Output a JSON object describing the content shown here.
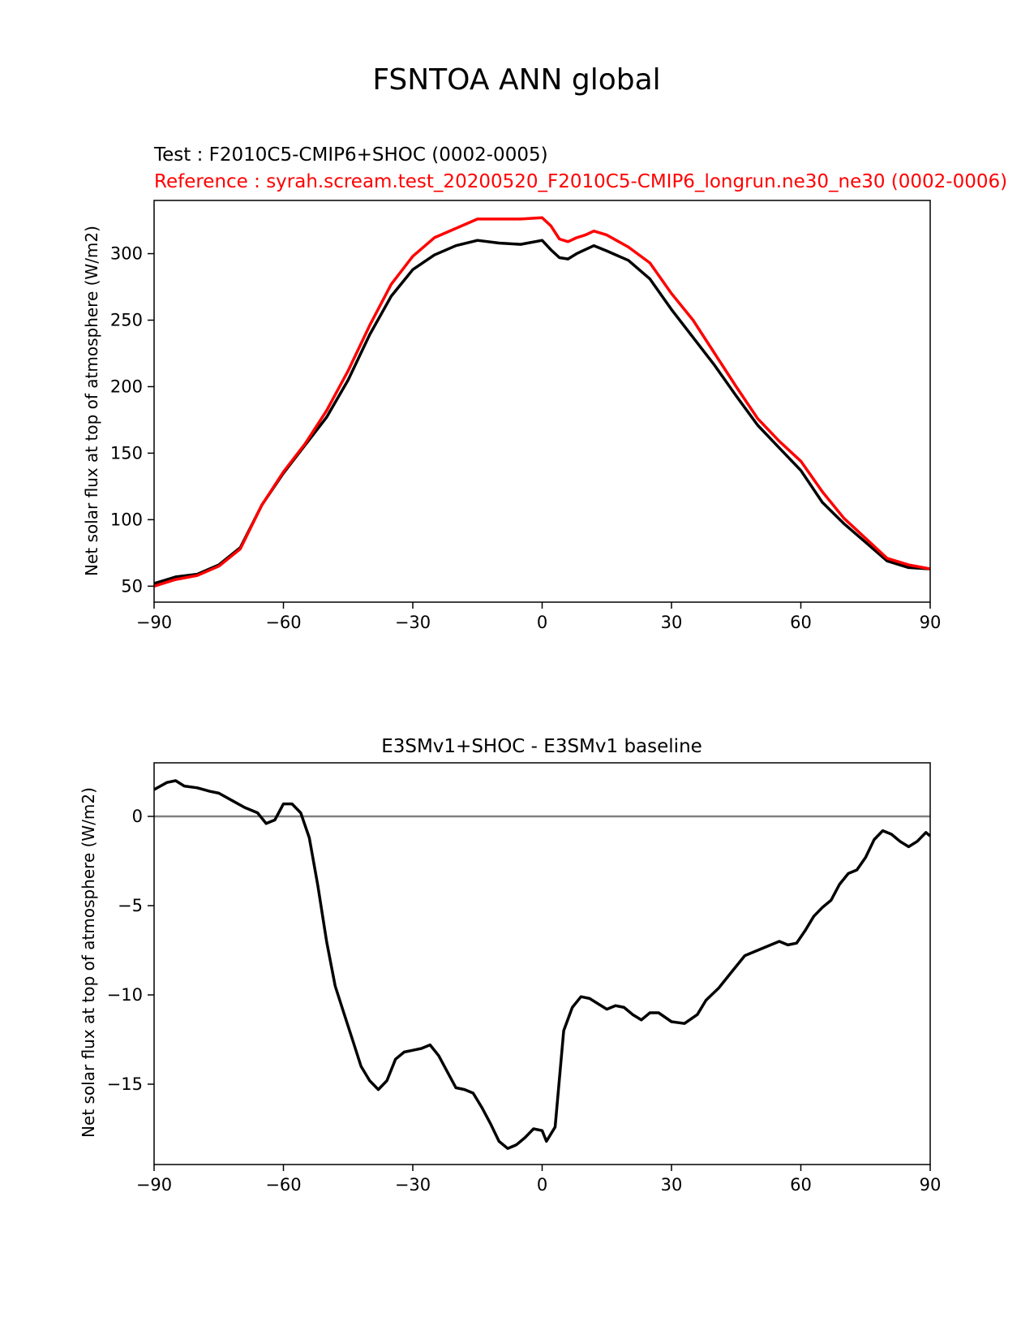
{
  "figure_title": "FSNTOA ANN global",
  "chart_data": [
    {
      "type": "line",
      "test_label": "Test : F2010C5-CMIP6+SHOC (0002-0005)",
      "reference_label": "Reference : syrah.scream.test_20200520_F2010C5-CMIP6_longrun.ne30_ne30 (0002-0006)",
      "ylabel": "Net solar flux at top of atmosphere (W/m2)",
      "xlabel": "",
      "xlim": [
        -90,
        90
      ],
      "ylim": [
        38,
        340
      ],
      "xticks": [
        -90,
        -60,
        -30,
        0,
        30,
        60,
        90
      ],
      "xtick_labels": [
        "−90",
        "−60",
        "−30",
        "0",
        "30",
        "60",
        "90"
      ],
      "yticks": [
        50,
        100,
        150,
        200,
        250,
        300
      ],
      "ytick_labels": [
        "50",
        "100",
        "150",
        "200",
        "250",
        "300"
      ],
      "x": [
        -90,
        -85,
        -80,
        -75,
        -70,
        -65,
        -60,
        -55,
        -50,
        -45,
        -40,
        -35,
        -30,
        -25,
        -20,
        -15,
        -10,
        -5,
        0,
        2,
        4,
        6,
        8,
        10,
        12,
        15,
        20,
        25,
        30,
        35,
        40,
        45,
        50,
        55,
        60,
        65,
        70,
        75,
        80,
        85,
        90
      ],
      "series": [
        {
          "name": "Test",
          "color": "#000000",
          "values": [
            52,
            57,
            59,
            66,
            79,
            111,
            135,
            156,
            177,
            205,
            239,
            268,
            288,
            299,
            306,
            310,
            308,
            307,
            310,
            303,
            297,
            296,
            300,
            303,
            306,
            302,
            295,
            281,
            258,
            237,
            216,
            193,
            171,
            154,
            137,
            113,
            97,
            83,
            69,
            64,
            63
          ]
        },
        {
          "name": "Reference",
          "color": "#ff0000",
          "values": [
            50,
            55,
            58,
            65,
            78,
            111,
            136,
            157,
            182,
            212,
            246,
            277,
            298,
            312,
            319,
            326,
            326,
            326,
            327,
            321,
            311,
            309,
            312,
            314,
            317,
            314,
            305,
            293,
            270,
            250,
            225,
            200,
            176,
            159,
            144,
            121,
            101,
            86,
            71,
            66,
            63
          ]
        }
      ]
    },
    {
      "type": "line",
      "title": "E3SMv1+SHOC - E3SMv1 baseline",
      "ylabel": "Net solar flux at top of atmosphere (W/m2)",
      "xlabel": "",
      "xlim": [
        -90,
        90
      ],
      "ylim": [
        -19.5,
        3
      ],
      "xticks": [
        -90,
        -60,
        -30,
        0,
        30,
        60,
        90
      ],
      "xtick_labels": [
        "−90",
        "−60",
        "−30",
        "0",
        "30",
        "60",
        "90"
      ],
      "yticks": [
        0,
        -5,
        -10,
        -15
      ],
      "ytick_labels": [
        "0",
        "−5",
        "−10",
        "−15"
      ],
      "zero_line": true,
      "x": [
        -90,
        -87,
        -85,
        -83,
        -80,
        -77,
        -75,
        -72,
        -69,
        -66,
        -64,
        -62,
        -60,
        -58,
        -56,
        -54,
        -52,
        -50,
        -48,
        -46,
        -44,
        -42,
        -40,
        -38,
        -36,
        -34,
        -32,
        -30,
        -28,
        -26,
        -24,
        -22,
        -20,
        -18,
        -16,
        -14,
        -12,
        -10,
        -8,
        -6,
        -4,
        -2,
        0,
        1,
        3,
        5,
        7,
        9,
        11,
        13,
        15,
        17,
        19,
        21,
        23,
        25,
        27,
        30,
        33,
        36,
        38,
        41,
        44,
        47,
        50,
        53,
        55,
        57,
        59,
        61,
        63,
        65,
        67,
        69,
        71,
        73,
        75,
        77,
        79,
        81,
        83,
        85,
        87,
        89,
        90
      ],
      "series": [
        {
          "name": "Difference",
          "color": "#000000",
          "values": [
            1.5,
            1.9,
            2.0,
            1.7,
            1.6,
            1.4,
            1.3,
            0.9,
            0.5,
            0.2,
            -0.4,
            -0.2,
            0.7,
            0.7,
            0.2,
            -1.2,
            -3.9,
            -7.0,
            -9.5,
            -11.0,
            -12.5,
            -14.0,
            -14.8,
            -15.3,
            -14.8,
            -13.6,
            -13.2,
            -13.1,
            -13.0,
            -12.8,
            -13.4,
            -14.3,
            -15.2,
            -15.3,
            -15.5,
            -16.3,
            -17.2,
            -18.2,
            -18.6,
            -18.4,
            -18.0,
            -17.5,
            -17.6,
            -18.2,
            -17.4,
            -12.0,
            -10.7,
            -10.1,
            -10.2,
            -10.5,
            -10.8,
            -10.6,
            -10.7,
            -11.1,
            -11.4,
            -11.0,
            -11.0,
            -11.5,
            -11.6,
            -11.1,
            -10.3,
            -9.6,
            -8.7,
            -7.8,
            -7.5,
            -7.2,
            -7.0,
            -7.2,
            -7.1,
            -6.4,
            -5.6,
            -5.1,
            -4.7,
            -3.8,
            -3.2,
            -3.0,
            -2.3,
            -1.3,
            -0.8,
            -1.0,
            -1.4,
            -1.7,
            -1.4,
            -0.9,
            -1.1
          ]
        }
      ]
    }
  ]
}
